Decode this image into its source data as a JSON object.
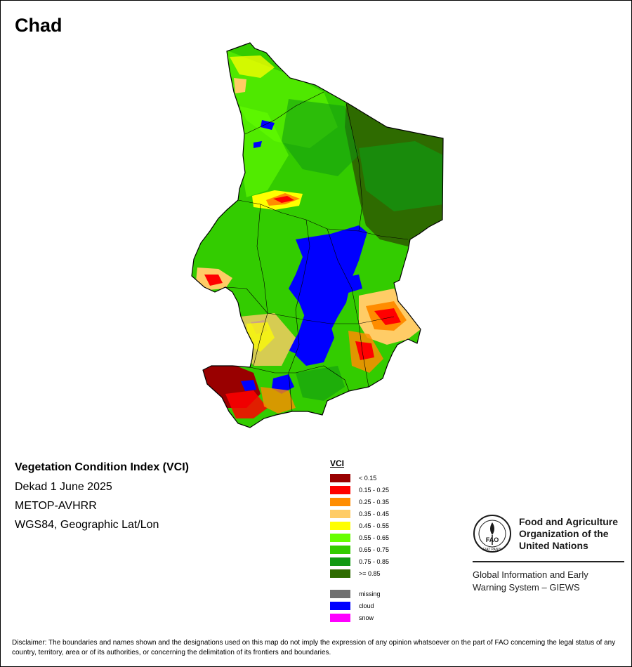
{
  "map": {
    "title": "Chad"
  },
  "product": {
    "name": "Vegetation Condition Index (VCI)",
    "period": "Dekad 1 June 2025",
    "sensor": "METOP-AVHRR",
    "projection": "WGS84, Geographic Lat/Lon"
  },
  "legend": {
    "title": "VCI",
    "classes": [
      {
        "label": "< 0.15",
        "color": "#990000"
      },
      {
        "label": "0.15 - 0.25",
        "color": "#ff0000"
      },
      {
        "label": "0.25 - 0.35",
        "color": "#ff8c00"
      },
      {
        "label": "0.35 - 0.45",
        "color": "#ffcc66"
      },
      {
        "label": "0.45 - 0.55",
        "color": "#ffff00"
      },
      {
        "label": "0.55 - 0.65",
        "color": "#66ff00"
      },
      {
        "label": "0.65 - 0.75",
        "color": "#33cc00"
      },
      {
        "label": "0.75 - 0.85",
        "color": "#119911"
      },
      {
        "label": ">= 0.85",
        "color": "#2e6b00"
      }
    ],
    "special": [
      {
        "label": "missing",
        "color": "#707070"
      },
      {
        "label": "cloud",
        "color": "#0000ff"
      },
      {
        "label": "snow",
        "color": "#ff00ff"
      }
    ]
  },
  "fao": {
    "line1": "Food and Agriculture",
    "line2": "Organization of the",
    "line3": "United Nations",
    "emblem_text": "FAO",
    "emblem_motto": "FIAT PANIS",
    "giews_line1": "Global Information and Early",
    "giews_line2": "Warning System – GIEWS",
    "icon": "fao-emblem"
  },
  "disclaimer": "Disclaimer: The boundaries and names shown and the designations used on this map do not imply the expression of any opinion whatsoever on the part of FAO concerning the legal status of any country, territory, area or of its authorities, or concerning the delimitation of its frontiers and boundaries."
}
